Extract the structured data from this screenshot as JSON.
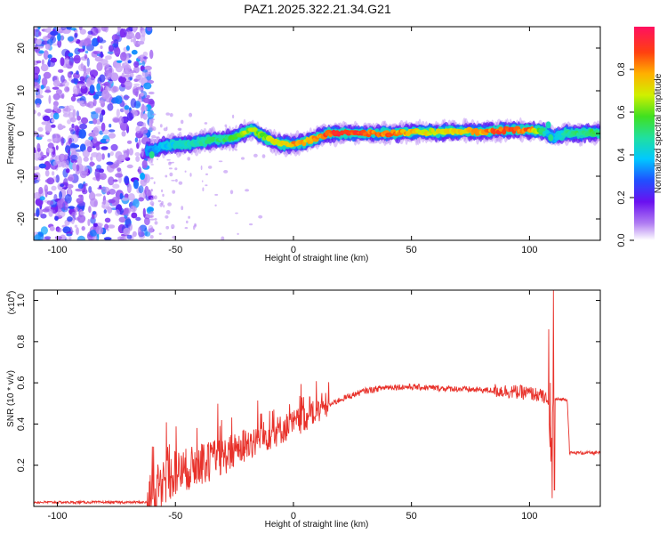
{
  "title": "PAZ1.2025.322.21.34.G21",
  "chart_data": [
    {
      "type": "heatmap",
      "name": "spectrogram",
      "xlabel": "Height of straight line (km)",
      "ylabel": "Frequency (Hz)",
      "xlim": [
        -110,
        130
      ],
      "ylim": [
        -25,
        25
      ],
      "xticks": [
        "-100",
        "-50",
        "0",
        "50",
        "100"
      ],
      "yticks": [
        "20",
        "10",
        "0",
        "-10",
        "-20"
      ],
      "colorbar": {
        "label": "Normalized spectral amplitude",
        "range": [
          0,
          1
        ],
        "ticks": [
          "0.0",
          "0.2",
          "0.4",
          "0.6",
          "0.8"
        ]
      },
      "ridge": {
        "x": [
          -60,
          -55,
          -50,
          -45,
          -40,
          -35,
          -30,
          -25,
          -20,
          -17,
          -15,
          -10,
          -5,
          0,
          5,
          10,
          15,
          20,
          30,
          40,
          50,
          60,
          70,
          80,
          90,
          100,
          105,
          108,
          110,
          115,
          120,
          130
        ],
        "freq": [
          -4,
          -3,
          -2.5,
          -2.5,
          -2,
          -1.5,
          -1.5,
          -1,
          0.5,
          1,
          0,
          -1.5,
          -2.5,
          -2.5,
          -2,
          -1,
          0,
          0,
          0,
          0,
          0.3,
          0.3,
          0.5,
          0.5,
          0.8,
          0.8,
          0.5,
          0,
          -1,
          0,
          0,
          0.3
        ],
        "amplitude": [
          0.35,
          0.4,
          0.45,
          0.5,
          0.5,
          0.55,
          0.55,
          0.6,
          0.7,
          0.75,
          0.65,
          0.7,
          0.8,
          0.85,
          0.8,
          0.85,
          0.95,
          1.0,
          0.95,
          0.9,
          0.8,
          0.75,
          0.8,
          0.85,
          0.95,
          0.9,
          0.6,
          0.4,
          0.35,
          0.5,
          0.55,
          0.6
        ]
      },
      "noise_region": [
        -110,
        -60
      ]
    },
    {
      "type": "line",
      "name": "snr",
      "xlabel": "Height of straight line (km)",
      "ylabel": "SNR (10 * v/v)",
      "scale_label": "(x10",
      "scale_exp": "4",
      "xlim": [
        -110,
        130
      ],
      "ylim": [
        0,
        1.05
      ],
      "xticks": [
        "-100",
        "-50",
        "0",
        "50",
        "100"
      ],
      "yticks": [
        "1.0",
        "0.8",
        "0.6",
        "0.4",
        "0.2"
      ],
      "color": "#e8312a",
      "envelope": {
        "x": [
          -110,
          -62,
          -58,
          -55,
          -50,
          -40,
          -30,
          -20,
          -10,
          0,
          10,
          20,
          30,
          40,
          50,
          60,
          70,
          80,
          90,
          100,
          104,
          106,
          108,
          109,
          110,
          111,
          116,
          117,
          120,
          130
        ],
        "y": [
          0.02,
          0.02,
          0.06,
          0.12,
          0.16,
          0.2,
          0.24,
          0.3,
          0.35,
          0.4,
          0.46,
          0.52,
          0.56,
          0.58,
          0.58,
          0.575,
          0.57,
          0.565,
          0.56,
          0.55,
          0.54,
          0.53,
          0.5,
          0.2,
          0.52,
          0.52,
          0.52,
          0.26,
          0.26,
          0.26
        ]
      }
    }
  ]
}
